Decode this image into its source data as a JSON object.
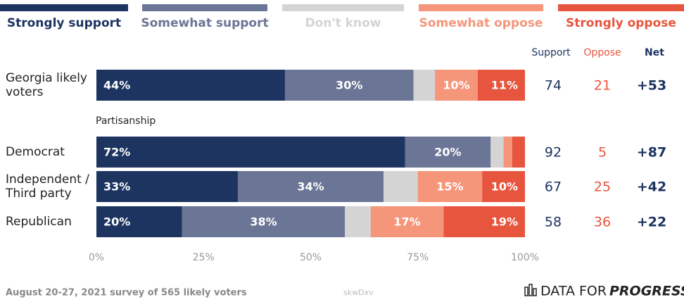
{
  "chart_data": {
    "type": "stacked-bar-horizontal",
    "categories": [
      "Georgia likely voters",
      "Democrat",
      "Independent / Third party",
      "Republican"
    ],
    "group_label": "Partisanship",
    "series": [
      {
        "name": "Strongly support",
        "color": "#1d3461",
        "values": [
          44,
          72,
          33,
          20
        ],
        "value_labels": [
          "44%",
          "72%",
          "33%",
          "20%"
        ]
      },
      {
        "name": "Somewhat support",
        "color": "#6b7595",
        "values": [
          30,
          20,
          34,
          38
        ],
        "value_labels": [
          "30%",
          "20%",
          "34%",
          "38%"
        ]
      },
      {
        "name": "Don't know",
        "color": "#d4d4d4",
        "values": [
          5,
          3,
          8,
          6
        ],
        "value_labels": [
          null,
          null,
          null,
          null
        ]
      },
      {
        "name": "Somewhat oppose",
        "color": "#f5967b",
        "values": [
          10,
          2,
          15,
          17
        ],
        "value_labels": [
          "10%",
          null,
          "15%",
          "17%"
        ]
      },
      {
        "name": "Strongly oppose",
        "color": "#e8553e",
        "values": [
          11,
          3,
          10,
          19
        ],
        "value_labels": [
          "11%",
          null,
          "10%",
          "19%"
        ]
      }
    ],
    "xlim": [
      0,
      100
    ],
    "xticks": [
      {
        "value": 0,
        "label": "0%"
      },
      {
        "value": 25,
        "label": "25%"
      },
      {
        "value": 50,
        "label": "50%"
      },
      {
        "value": 75,
        "label": "75%"
      },
      {
        "value": 100,
        "label": "100%"
      }
    ],
    "table": {
      "headers": [
        "Support",
        "Oppose",
        "Net"
      ],
      "support": [
        74,
        92,
        67,
        58
      ],
      "oppose": [
        21,
        5,
        25,
        36
      ],
      "net": {
        "values": [
          53,
          87,
          42,
          22
        ],
        "value_labels": [
          "+53",
          "+87",
          "+42",
          "+22"
        ]
      }
    },
    "footnote": "August 20-27, 2021 survey of 565 likely voters",
    "watermark": "skwDxv",
    "logo": [
      "DATA FOR",
      "PROGRESS"
    ]
  }
}
